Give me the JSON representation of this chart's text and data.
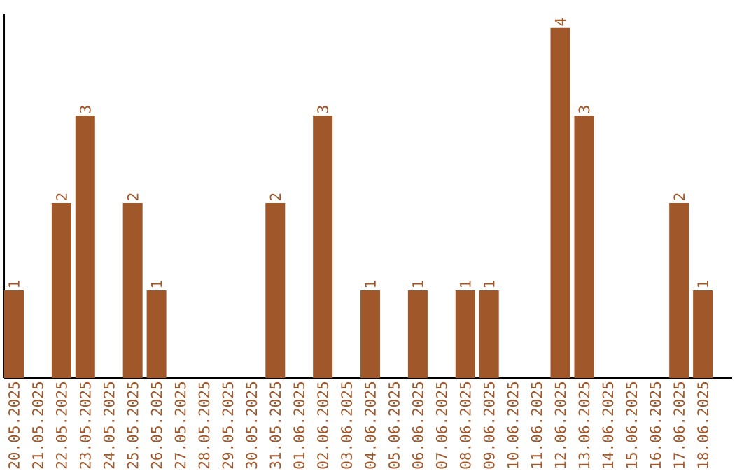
{
  "chart_data": {
    "type": "bar",
    "categories": [
      "20.05.2025",
      "21.05.2025",
      "22.05.2025",
      "23.05.2025",
      "24.05.2025",
      "25.05.2025",
      "26.05.2025",
      "27.05.2025",
      "28.05.2025",
      "29.05.2025",
      "30.05.2025",
      "31.05.2025",
      "01.06.2025",
      "02.06.2025",
      "03.06.2025",
      "04.06.2025",
      "05.06.2025",
      "06.06.2025",
      "07.06.2025",
      "08.06.2025",
      "09.06.2025",
      "10.06.2025",
      "11.06.2025",
      "12.06.2025",
      "13.06.2025",
      "14.06.2025",
      "15.06.2025",
      "16.06.2025",
      "17.06.2025",
      "18.06.2025"
    ],
    "values": [
      1,
      null,
      2,
      3,
      null,
      2,
      1,
      null,
      null,
      null,
      null,
      2,
      null,
      3,
      null,
      1,
      null,
      1,
      null,
      1,
      1,
      null,
      null,
      4,
      3,
      null,
      null,
      null,
      2,
      1
    ],
    "color": "#a0582a",
    "ylim": [
      0,
      4
    ],
    "tick_labels": "x",
    "data_labels": true
  }
}
